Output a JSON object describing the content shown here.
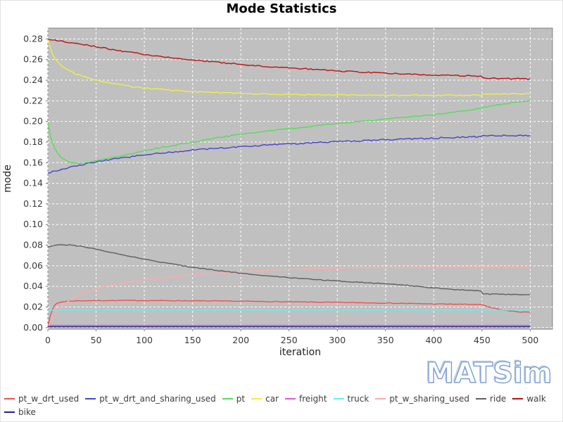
{
  "title": "Mode Statistics",
  "watermark": "MATSim",
  "legend": {
    "rows": [
      [
        "pt_w_drt_used",
        "pt_w_drt_and_sharing_used",
        "pt",
        "car",
        "freight",
        "truck",
        "pt_w_sharing_used",
        "ride",
        "walk"
      ],
      [
        "bike"
      ]
    ]
  },
  "chart_data": {
    "type": "line",
    "title": "Mode Statistics",
    "xlabel": "iteration",
    "ylabel": "mode",
    "xlim": [
      0,
      523
    ],
    "ylim": [
      -0.0015,
      0.2905
    ],
    "x_ticks": [
      0,
      50,
      100,
      150,
      200,
      250,
      300,
      350,
      400,
      450,
      500
    ],
    "y_ticks": [
      0.0,
      0.02,
      0.04,
      0.06,
      0.08,
      0.1,
      0.12,
      0.14,
      0.16,
      0.18,
      0.2,
      0.22,
      0.24,
      0.26,
      0.28
    ],
    "grid": true,
    "plot_bg": "#c0c0c0",
    "grid_color": "#ffffff",
    "plot_border": "#808080",
    "tick_label_color": "#3a3a3a",
    "axis_label_color": "#222222",
    "legend_position": "bottom-left",
    "series": [
      {
        "name": "pt_w_drt_used",
        "color": "#ee5050",
        "noise": 0.0003,
        "points": [
          [
            0,
            0.0
          ],
          [
            2,
            0.01
          ],
          [
            4,
            0.016
          ],
          [
            6,
            0.02
          ],
          [
            8,
            0.0225
          ],
          [
            10,
            0.0238
          ],
          [
            15,
            0.025
          ],
          [
            20,
            0.0256
          ],
          [
            30,
            0.026
          ],
          [
            50,
            0.0262
          ],
          [
            75,
            0.0263
          ],
          [
            100,
            0.0263
          ],
          [
            150,
            0.026
          ],
          [
            200,
            0.0256
          ],
          [
            250,
            0.025
          ],
          [
            300,
            0.0245
          ],
          [
            350,
            0.0238
          ],
          [
            400,
            0.023
          ],
          [
            425,
            0.0227
          ],
          [
            449,
            0.0224
          ],
          [
            455,
            0.0205
          ],
          [
            462,
            0.0188
          ],
          [
            470,
            0.0172
          ],
          [
            480,
            0.016
          ],
          [
            490,
            0.0152
          ],
          [
            500,
            0.0148
          ]
        ]
      },
      {
        "name": "pt_w_drt_and_sharing_used",
        "color": "#4444cc",
        "noise": 0.0007,
        "points": [
          [
            0,
            0.15
          ],
          [
            10,
            0.1525
          ],
          [
            25,
            0.156
          ],
          [
            50,
            0.1608
          ],
          [
            75,
            0.1645
          ],
          [
            100,
            0.1675
          ],
          [
            125,
            0.17
          ],
          [
            150,
            0.1722
          ],
          [
            175,
            0.174
          ],
          [
            200,
            0.1756
          ],
          [
            225,
            0.177
          ],
          [
            250,
            0.1782
          ],
          [
            275,
            0.1793
          ],
          [
            300,
            0.1803
          ],
          [
            325,
            0.1813
          ],
          [
            350,
            0.1822
          ],
          [
            375,
            0.183
          ],
          [
            400,
            0.1838
          ],
          [
            425,
            0.1846
          ],
          [
            449,
            0.1852
          ],
          [
            451,
            0.186
          ],
          [
            475,
            0.1863
          ],
          [
            500,
            0.1863
          ]
        ]
      },
      {
        "name": "pt",
        "color": "#55dd55",
        "noise": 0.0005,
        "points": [
          [
            0,
            0.199
          ],
          [
            3,
            0.185
          ],
          [
            6,
            0.176
          ],
          [
            10,
            0.169
          ],
          [
            15,
            0.164
          ],
          [
            20,
            0.1615
          ],
          [
            25,
            0.16
          ],
          [
            30,
            0.1595
          ],
          [
            35,
            0.1595
          ],
          [
            40,
            0.16
          ],
          [
            50,
            0.1618
          ],
          [
            60,
            0.1638
          ],
          [
            75,
            0.1665
          ],
          [
            100,
            0.1715
          ],
          [
            125,
            0.176
          ],
          [
            150,
            0.18
          ],
          [
            175,
            0.184
          ],
          [
            200,
            0.1875
          ],
          [
            225,
            0.1905
          ],
          [
            250,
            0.193
          ],
          [
            275,
            0.1955
          ],
          [
            300,
            0.198
          ],
          [
            325,
            0.2
          ],
          [
            350,
            0.2025
          ],
          [
            375,
            0.2045
          ],
          [
            400,
            0.2065
          ],
          [
            425,
            0.2095
          ],
          [
            449,
            0.2125
          ],
          [
            451,
            0.2135
          ],
          [
            465,
            0.216
          ],
          [
            480,
            0.218
          ],
          [
            500,
            0.2205
          ]
        ]
      },
      {
        "name": "car",
        "color": "#eeee44",
        "noise": 0.0006,
        "points": [
          [
            0,
            0.28
          ],
          [
            3,
            0.27
          ],
          [
            6,
            0.263
          ],
          [
            10,
            0.258
          ],
          [
            15,
            0.2535
          ],
          [
            20,
            0.2505
          ],
          [
            25,
            0.248
          ],
          [
            30,
            0.246
          ],
          [
            40,
            0.2425
          ],
          [
            50,
            0.24
          ],
          [
            60,
            0.238
          ],
          [
            75,
            0.2355
          ],
          [
            90,
            0.2335
          ],
          [
            100,
            0.2325
          ],
          [
            115,
            0.2312
          ],
          [
            125,
            0.2305
          ],
          [
            150,
            0.229
          ],
          [
            175,
            0.228
          ],
          [
            200,
            0.2272
          ],
          [
            225,
            0.2266
          ],
          [
            250,
            0.2262
          ],
          [
            275,
            0.2259
          ],
          [
            300,
            0.2257
          ],
          [
            350,
            0.2255
          ],
          [
            400,
            0.2253
          ],
          [
            449,
            0.2252
          ],
          [
            451,
            0.2262
          ],
          [
            475,
            0.2268
          ],
          [
            500,
            0.227
          ]
        ]
      },
      {
        "name": "freight",
        "color": "#dd55dd",
        "noise": 0.0,
        "points": [
          [
            0,
            0.0022
          ],
          [
            500,
            0.0022
          ]
        ]
      },
      {
        "name": "truck",
        "color": "#66eeee",
        "noise": 0.0,
        "points": [
          [
            0,
            0.017
          ],
          [
            500,
            0.017
          ]
        ]
      },
      {
        "name": "pt_w_sharing_used",
        "color": "#ffaaaa",
        "noise": 0.00015,
        "points": [
          [
            0,
            0.0
          ],
          [
            3,
            0.006
          ],
          [
            6,
            0.011
          ],
          [
            10,
            0.0165
          ],
          [
            15,
            0.0215
          ],
          [
            20,
            0.025
          ],
          [
            25,
            0.028
          ],
          [
            30,
            0.0305
          ],
          [
            40,
            0.0345
          ],
          [
            50,
            0.0378
          ],
          [
            60,
            0.0402
          ],
          [
            75,
            0.043
          ],
          [
            90,
            0.0452
          ],
          [
            100,
            0.0465
          ],
          [
            125,
            0.049
          ],
          [
            150,
            0.051
          ],
          [
            175,
            0.0528
          ],
          [
            200,
            0.0543
          ],
          [
            225,
            0.0555
          ],
          [
            250,
            0.0565
          ],
          [
            275,
            0.0572
          ],
          [
            300,
            0.0578
          ],
          [
            325,
            0.0582
          ],
          [
            350,
            0.0585
          ],
          [
            375,
            0.0587
          ],
          [
            400,
            0.0589
          ],
          [
            449,
            0.0591
          ],
          [
            475,
            0.0592
          ],
          [
            500,
            0.0592
          ]
        ]
      },
      {
        "name": "ride",
        "color": "#5f5f5f",
        "noise": 0.0004,
        "points": [
          [
            0,
            0.078
          ],
          [
            8,
            0.0802
          ],
          [
            15,
            0.0805
          ],
          [
            25,
            0.08
          ],
          [
            40,
            0.078
          ],
          [
            50,
            0.0762
          ],
          [
            60,
            0.0742
          ],
          [
            75,
            0.0712
          ],
          [
            90,
            0.0682
          ],
          [
            100,
            0.0662
          ],
          [
            115,
            0.0638
          ],
          [
            125,
            0.0622
          ],
          [
            150,
            0.0585
          ],
          [
            175,
            0.0555
          ],
          [
            200,
            0.0528
          ],
          [
            225,
            0.0505
          ],
          [
            250,
            0.0485
          ],
          [
            275,
            0.0468
          ],
          [
            300,
            0.0452
          ],
          [
            325,
            0.0438
          ],
          [
            350,
            0.0425
          ],
          [
            375,
            0.0408
          ],
          [
            400,
            0.0385
          ],
          [
            425,
            0.0368
          ],
          [
            449,
            0.0357
          ],
          [
            451,
            0.0327
          ],
          [
            475,
            0.0322
          ],
          [
            500,
            0.032
          ]
        ]
      },
      {
        "name": "walk",
        "color": "#bb1111",
        "noise": 0.0006,
        "points": [
          [
            0,
            0.28
          ],
          [
            10,
            0.2785
          ],
          [
            25,
            0.2765
          ],
          [
            50,
            0.2725
          ],
          [
            75,
            0.2685
          ],
          [
            100,
            0.265
          ],
          [
            125,
            0.262
          ],
          [
            150,
            0.2595
          ],
          [
            175,
            0.2575
          ],
          [
            200,
            0.2555
          ],
          [
            225,
            0.2535
          ],
          [
            250,
            0.252
          ],
          [
            275,
            0.2505
          ],
          [
            300,
            0.249
          ],
          [
            325,
            0.2478
          ],
          [
            350,
            0.2468
          ],
          [
            375,
            0.2458
          ],
          [
            400,
            0.245
          ],
          [
            425,
            0.2444
          ],
          [
            449,
            0.244
          ],
          [
            451,
            0.242
          ],
          [
            475,
            0.2415
          ],
          [
            500,
            0.2413
          ]
        ]
      },
      {
        "name": "bike",
        "color": "#202090",
        "noise": 0.0,
        "points": [
          [
            0,
            0.0009
          ],
          [
            500,
            0.0009
          ]
        ]
      }
    ]
  }
}
